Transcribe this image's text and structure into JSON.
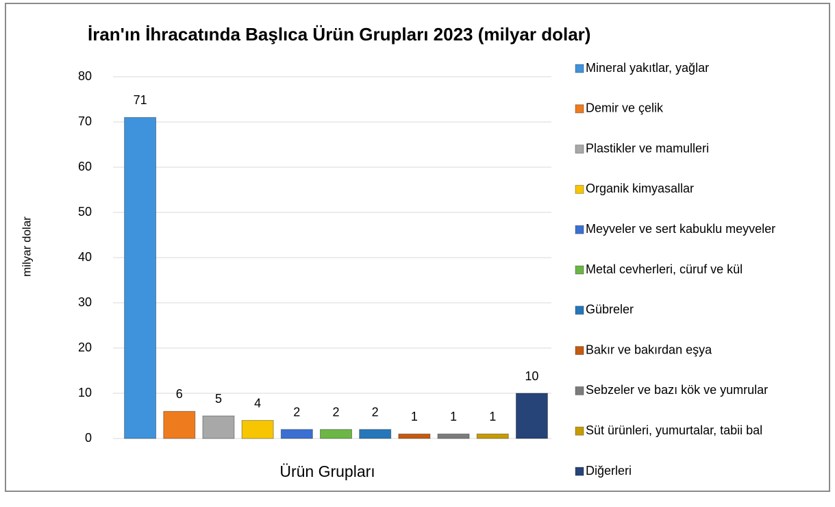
{
  "chart_data": {
    "type": "bar",
    "title": "İran'ın İhracatında Başlıca Ürün Grupları 2023 (milyar dolar)",
    "x_label": "Ürün Grupları",
    "y_label": "milyar dolar",
    "categories": [
      "Mineral yakıtlar, yağlar",
      "Demir ve çelik",
      "Plastikler ve mamulleri",
      "Organik kimyasallar",
      "Meyveler ve sert kabuklu meyveler",
      "Metal cevherleri, cüruf ve kül",
      "Gübreler",
      "Bakır ve bakırdan eşya",
      "Sebzeler ve bazı kök ve yumrular",
      "Süt ürünleri, yumurtalar, tabii bal",
      "Diğerleri"
    ],
    "values": [
      71,
      6,
      5,
      4,
      2,
      2,
      2,
      1,
      1,
      1,
      10
    ],
    "colors": [
      "#3f93dc",
      "#ee7b1e",
      "#a8a8a8",
      "#f7c600",
      "#3b70d2",
      "#6cb646",
      "#2677ba",
      "#c55a11",
      "#7c7c7c",
      "#c79c00",
      "#264478"
    ],
    "ylim": [
      0,
      80
    ],
    "yticks": [
      0,
      10,
      20,
      30,
      40,
      50,
      60,
      70,
      80
    ],
    "grid": true,
    "legend": "right"
  }
}
